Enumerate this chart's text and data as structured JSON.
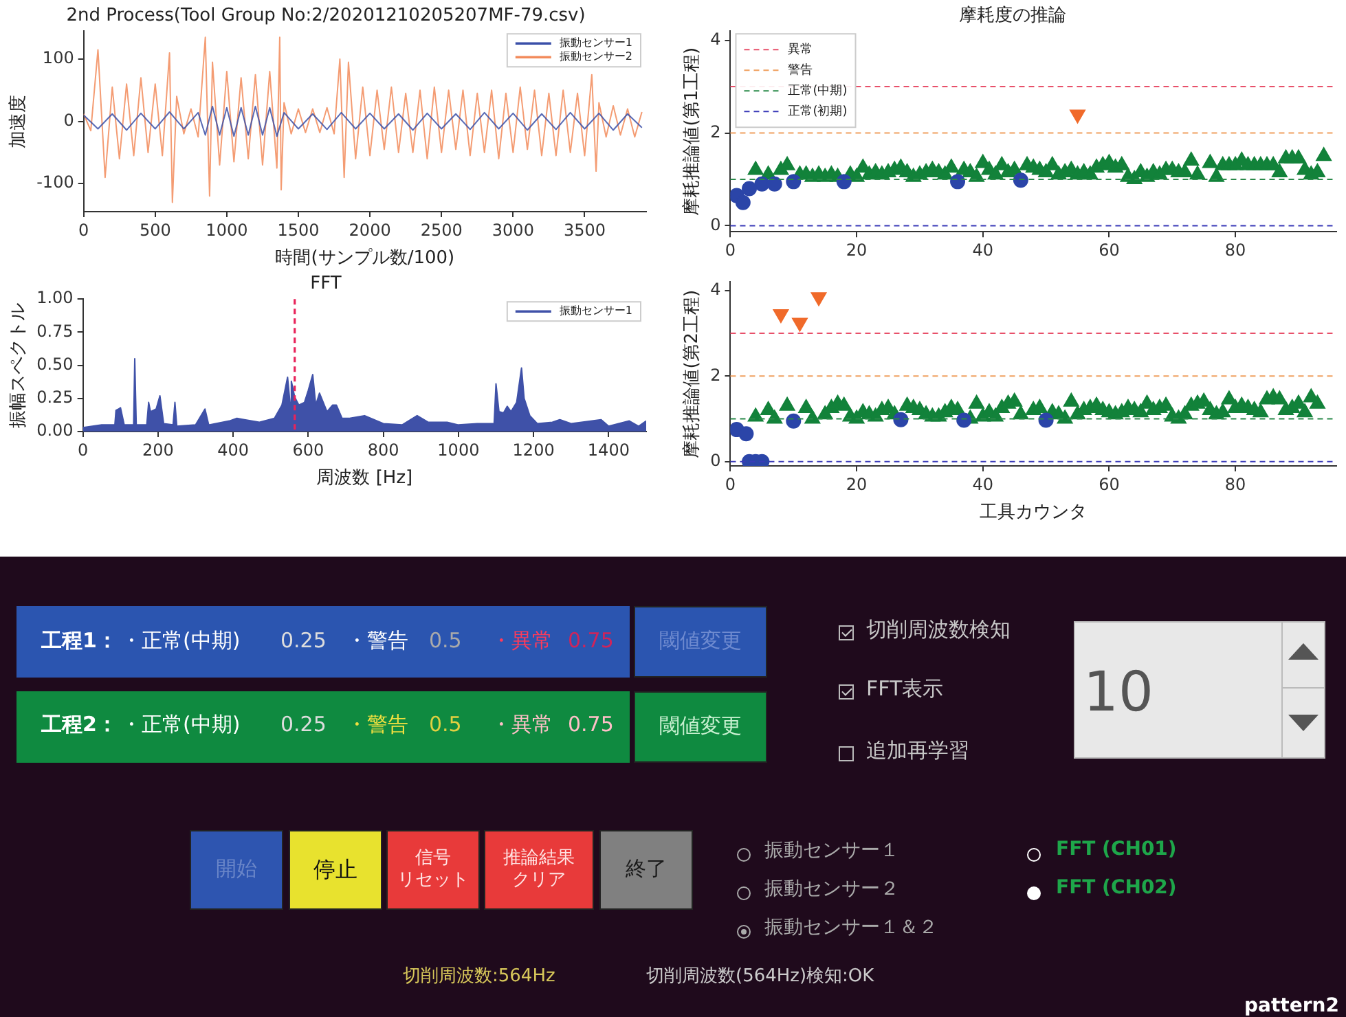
{
  "chart_data": [
    {
      "type": "line",
      "title": "2nd Process(Tool Group No:2/20201210205207MF-79.csv)",
      "xlabel": "時間(サンプル数/100)",
      "ylabel": "加速度",
      "xlim": [
        0,
        3930
      ],
      "xticks": [
        0,
        500,
        1000,
        1500,
        2000,
        2500,
        3000,
        3500
      ],
      "ylim": [
        -145,
        145
      ],
      "yticks": [
        -100,
        0,
        100
      ],
      "legend": "top right",
      "series": [
        {
          "name": "振動センサー1",
          "color": "#3a4fa8",
          "x": [
            0,
            100,
            200,
            300,
            400,
            500,
            600,
            700,
            800,
            850,
            900,
            950,
            1000,
            1050,
            1100,
            1150,
            1200,
            1250,
            1300,
            1350,
            1400,
            1500,
            1600,
            1700,
            1800,
            1900,
            2000,
            2100,
            2200,
            2300,
            2400,
            2500,
            2600,
            2700,
            2800,
            2900,
            3000,
            3100,
            3200,
            3300,
            3400,
            3500,
            3600,
            3700,
            3800,
            3900
          ],
          "values": [
            10,
            -12,
            12,
            -14,
            13,
            -12,
            15,
            -12,
            14,
            -22,
            24,
            -22,
            22,
            -24,
            22,
            -22,
            24,
            -22,
            22,
            -24,
            14,
            -12,
            12,
            -13,
            14,
            -12,
            13,
            -12,
            12,
            -14,
            13,
            -12,
            12,
            -13,
            14,
            -12,
            13,
            -14,
            12,
            -13,
            14,
            -12,
            13,
            -14,
            12,
            -10
          ]
        },
        {
          "name": "振動センサー2",
          "color": "#f28a5a",
          "x": [
            0,
            50,
            100,
            150,
            200,
            250,
            300,
            350,
            400,
            450,
            500,
            550,
            600,
            620,
            650,
            700,
            750,
            800,
            850,
            880,
            900,
            950,
            1000,
            1050,
            1100,
            1150,
            1200,
            1250,
            1300,
            1350,
            1370,
            1380,
            1400,
            1450,
            1500,
            1550,
            1600,
            1650,
            1700,
            1750,
            1790,
            1820,
            1850,
            1900,
            1950,
            2000,
            2050,
            2100,
            2150,
            2200,
            2250,
            2300,
            2350,
            2400,
            2450,
            2500,
            2550,
            2600,
            2650,
            2700,
            2750,
            2800,
            2850,
            2900,
            2950,
            3000,
            3050,
            3100,
            3150,
            3200,
            3250,
            3300,
            3350,
            3400,
            3450,
            3500,
            3550,
            3580,
            3600,
            3650,
            3700,
            3750,
            3800,
            3850,
            3900
          ],
          "values": [
            12,
            -15,
            115,
            -90,
            55,
            -60,
            60,
            -55,
            70,
            -50,
            60,
            -55,
            110,
            -130,
            40,
            -20,
            20,
            -25,
            135,
            -120,
            95,
            -70,
            80,
            -65,
            70,
            -60,
            75,
            -70,
            80,
            -75,
            135,
            -110,
            30,
            -20,
            20,
            -18,
            20,
            -18,
            22,
            -20,
            100,
            -90,
            95,
            -60,
            55,
            -55,
            50,
            -45,
            55,
            -50,
            45,
            -50,
            50,
            -60,
            55,
            -50,
            50,
            -45,
            50,
            -55,
            45,
            -50,
            50,
            -60,
            45,
            -50,
            55,
            -45,
            50,
            -55,
            45,
            -55,
            50,
            -50,
            45,
            -55,
            75,
            -80,
            30,
            -25,
            25,
            -22,
            20,
            -25,
            15
          ]
        }
      ]
    },
    {
      "type": "area",
      "title": "FFT",
      "xlabel": "周波数 [Hz]",
      "ylabel": "振幅スペクトル",
      "xlim": [
        0,
        1500
      ],
      "xticks": [
        0,
        200,
        400,
        600,
        800,
        1000,
        1200,
        1400
      ],
      "ylim": [
        0,
        1
      ],
      "yticks": [
        {
          "value": 0,
          "label": "0.00"
        },
        {
          "value": 0.25,
          "label": "0.25"
        },
        {
          "value": 0.5,
          "label": "0.50"
        },
        {
          "value": 0.75,
          "label": "0.75"
        },
        {
          "value": 1,
          "label": "1.00"
        }
      ],
      "legend": "top right",
      "ref_lines": [
        {
          "axis": "x",
          "value": 564,
          "color": "#e8245a",
          "line_style": "dashed"
        }
      ],
      "series": [
        {
          "name": "振動センサー1",
          "color": "#3f51a8",
          "x": [
            0,
            50,
            85,
            88,
            95,
            100,
            110,
            135,
            138,
            142,
            170,
            175,
            180,
            195,
            205,
            215,
            240,
            245,
            250,
            300,
            325,
            335,
            390,
            410,
            430,
            470,
            510,
            530,
            545,
            552,
            555,
            564,
            575,
            590,
            600,
            612,
            620,
            630,
            650,
            665,
            675,
            690,
            710,
            750,
            800,
            850,
            890,
            920,
            970,
            1000,
            1050,
            1095,
            1100,
            1108,
            1120,
            1130,
            1140,
            1155,
            1160,
            1168,
            1175,
            1190,
            1210,
            1250,
            1270,
            1300,
            1380,
            1400,
            1455,
            1480,
            1500
          ],
          "values": [
            0.03,
            0.05,
            0.05,
            0.16,
            0.17,
            0.18,
            0.05,
            0.05,
            0.55,
            0.05,
            0.05,
            0.22,
            0.15,
            0.17,
            0.27,
            0.06,
            0.05,
            0.22,
            0.04,
            0.05,
            0.17,
            0.05,
            0.08,
            0.1,
            0.09,
            0.07,
            0.1,
            0.2,
            0.41,
            0.2,
            0.38,
            0.26,
            0.2,
            0.22,
            0.31,
            0.43,
            0.2,
            0.29,
            0.15,
            0.2,
            0.2,
            0.1,
            0.1,
            0.12,
            0.06,
            0.05,
            0.12,
            0.07,
            0.07,
            0.05,
            0.06,
            0.06,
            0.36,
            0.15,
            0.14,
            0.19,
            0.15,
            0.22,
            0.32,
            0.48,
            0.25,
            0.12,
            0.06,
            0.07,
            0.09,
            0.06,
            0.09,
            0.04,
            0.08,
            0.04,
            0.08
          ]
        }
      ]
    },
    {
      "type": "scatter",
      "title": "摩耗度の推論",
      "ylabel": "摩耗推論値(第1工程)",
      "xlim": [
        0,
        96
      ],
      "xticks": [
        0,
        20,
        40,
        60,
        80
      ],
      "ylim": [
        -0.13,
        4.2
      ],
      "yticks": [
        0,
        2,
        4
      ],
      "legend": "top left",
      "ref_lines": [
        {
          "axis": "y",
          "value": 3,
          "label": "異常",
          "color": "#e8506a",
          "line_style": "dashed"
        },
        {
          "axis": "y",
          "value": 2,
          "label": "警告",
          "color": "#f0a060",
          "line_style": "dashed"
        },
        {
          "axis": "y",
          "value": 1,
          "label": "正常(中期)",
          "color": "#2a8a4a",
          "line_style": "dashed"
        },
        {
          "axis": "y",
          "value": 0,
          "label": "正常(初期)",
          "color": "#3a3ab8",
          "line_style": "dashed"
        }
      ],
      "series": [
        {
          "color": "#2b45a8",
          "marker": "circle",
          "x": [
            1,
            2,
            3,
            5,
            7,
            10,
            18,
            36,
            46
          ],
          "values": [
            0.65,
            0.5,
            0.8,
            0.9,
            0.9,
            0.95,
            0.95,
            0.95,
            0.98
          ]
        },
        {
          "color": "#12823a",
          "marker": "triangle",
          "x": [
            4,
            6,
            8,
            9,
            11,
            12,
            13,
            14,
            15,
            16,
            17,
            19,
            20,
            21,
            22,
            23,
            24,
            25,
            26,
            27,
            28,
            29,
            30,
            31,
            32,
            33,
            34,
            35,
            37,
            38,
            39,
            40,
            41,
            42,
            43,
            44,
            45,
            47,
            48,
            49,
            50,
            51,
            52,
            53,
            54,
            55,
            56,
            57,
            58,
            59,
            60,
            61,
            62,
            63,
            64,
            65,
            66,
            67,
            68,
            69,
            70,
            71,
            72,
            73,
            74,
            76,
            77,
            78,
            79,
            80,
            81,
            82,
            83,
            84,
            85,
            86,
            87,
            88,
            89,
            90,
            91,
            92,
            93,
            94
          ],
          "values": [
            1.2,
            1.1,
            1.2,
            1.3,
            1.1,
            1.1,
            1.05,
            1.1,
            1.05,
            1.1,
            1.05,
            1.1,
            1.05,
            1.25,
            1.1,
            1.15,
            1.1,
            1.15,
            1.2,
            1.25,
            1.15,
            1.05,
            1.1,
            1.15,
            1.2,
            1.15,
            1.1,
            1.25,
            1.2,
            1.15,
            1.05,
            1.35,
            1.2,
            1.1,
            1.3,
            1.15,
            1.2,
            1.3,
            1.25,
            1.2,
            1.15,
            1.3,
            1.1,
            1.15,
            1.2,
            1.1,
            1.15,
            1.1,
            1.25,
            1.3,
            1.35,
            1.25,
            1.3,
            1.05,
            1.0,
            1.15,
            1.05,
            1.15,
            1.1,
            1.2,
            1.2,
            1.15,
            1.15,
            1.4,
            1.1,
            1.35,
            1.05,
            1.3,
            1.3,
            1.3,
            1.4,
            1.3,
            1.3,
            1.3,
            1.3,
            1.3,
            1.15,
            1.45,
            1.45,
            1.45,
            1.2,
            1.1,
            1.15,
            1.5
          ]
        },
        {
          "color": "#f06a2a",
          "marker": "triangle_down",
          "x": [
            55
          ],
          "values": [
            2.4
          ]
        }
      ]
    },
    {
      "type": "scatter",
      "xlabel": "工具カウンタ",
      "ylabel": "摩耗推論値(第2工程)",
      "xlim": [
        0,
        96
      ],
      "xticks": [
        0,
        20,
        40,
        60,
        80
      ],
      "ylim": [
        -0.1,
        4.2
      ],
      "yticks": [
        0,
        2,
        4
      ],
      "ref_lines": [
        {
          "axis": "y",
          "value": 3,
          "color": "#e8506a",
          "line_style": "dashed"
        },
        {
          "axis": "y",
          "value": 2,
          "color": "#f0a060",
          "line_style": "dashed"
        },
        {
          "axis": "y",
          "value": 1,
          "color": "#2a8a4a",
          "line_style": "dashed"
        },
        {
          "axis": "y",
          "value": 0,
          "color": "#3a3ab8",
          "line_style": "dashed"
        }
      ],
      "series": [
        {
          "color": "#2b45a8",
          "marker": "circle",
          "x": [
            1,
            2.5,
            3,
            4,
            5,
            10,
            27,
            37,
            50
          ],
          "values": [
            0.75,
            0.65,
            0,
            0,
            0,
            0.95,
            0.98,
            0.97,
            0.97
          ]
        },
        {
          "color": "#12823a",
          "marker": "triangle",
          "x": [
            4,
            6,
            7,
            9,
            12,
            13,
            15,
            16,
            17,
            18,
            19,
            20,
            21,
            22,
            23,
            24,
            25,
            26,
            28,
            29,
            30,
            31,
            32,
            33,
            34,
            35,
            36,
            38,
            39,
            40,
            41,
            42,
            43,
            44,
            45,
            46,
            48,
            49,
            51,
            52,
            53,
            54,
            55,
            56,
            57,
            58,
            59,
            60,
            61,
            62,
            63,
            64,
            65,
            66,
            67,
            68,
            69,
            70,
            71,
            72,
            73,
            74,
            75,
            76,
            77,
            78,
            79,
            80,
            81,
            82,
            83,
            84,
            85,
            86,
            87,
            88,
            89,
            90,
            91,
            92,
            93
          ],
          "values": [
            1.05,
            1.2,
            1.0,
            1.3,
            1.25,
            1.0,
            1.1,
            1.25,
            1.35,
            1.3,
            1.05,
            1.0,
            1.15,
            1.1,
            1.05,
            1.2,
            1.25,
            1.1,
            1.3,
            1.25,
            1.2,
            1.1,
            1.05,
            1.05,
            1.15,
            1.25,
            1.2,
            1.0,
            1.35,
            1.05,
            1.15,
            1.05,
            1.25,
            1.35,
            1.4,
            1.1,
            1.2,
            1.25,
            1.15,
            1.1,
            1.0,
            1.4,
            1.1,
            1.2,
            1.25,
            1.3,
            1.2,
            1.15,
            1.1,
            1.15,
            1.25,
            1.2,
            1.15,
            1.35,
            1.2,
            1.25,
            1.3,
            1.05,
            1.0,
            1.1,
            1.3,
            1.35,
            1.4,
            1.2,
            1.1,
            1.15,
            1.45,
            1.25,
            1.3,
            1.25,
            1.2,
            1.15,
            1.45,
            1.5,
            1.45,
            1.2,
            1.25,
            1.35,
            1.15,
            1.5,
            1.35
          ]
        },
        {
          "color": "#f06a2a",
          "marker": "triangle_down",
          "x": [
            8,
            11,
            14
          ],
          "values": [
            3.45,
            3.25,
            3.85
          ]
        }
      ]
    },
    {
      "type": "other",
      "annotations": [
        "工程1：",
        "・正常(中期)",
        "0.25",
        "・警告",
        "0.5",
        "・異常",
        "0.75",
        "閾値変更",
        "工程2：",
        "・正常(中期)",
        "0.25",
        "・警告",
        "0.5",
        "・異常",
        "0.75",
        "閾値変更",
        "切削周波数検知",
        "FFT表示",
        "追加再学習",
        "10",
        "開始",
        "停止",
        "信号",
        "リセット",
        "推論結果",
        "クリア",
        "終了",
        "振動センサー１",
        "振動センサー２",
        "振動センサー１＆２",
        "FFT (CH01)",
        "FFT (CH02)",
        "切削周波数:564Hz",
        "切削周波数(564Hz)検知:OK",
        "pattern2"
      ]
    }
  ]
}
